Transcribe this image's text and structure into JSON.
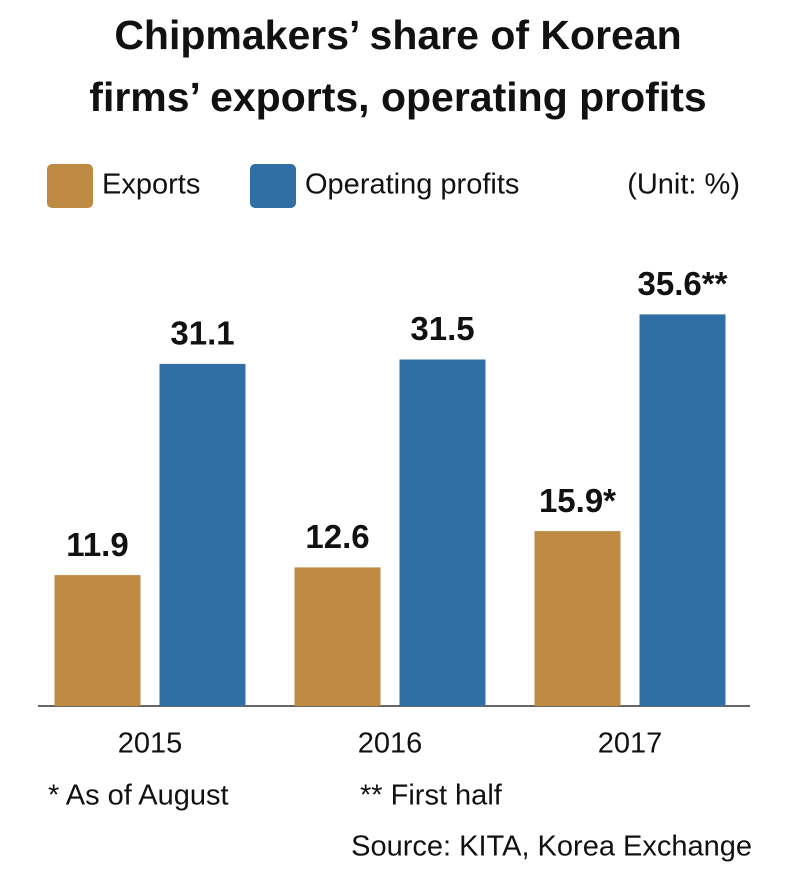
{
  "chart_data": {
    "type": "bar",
    "title": "Chipmakers’ share of Korean",
    "title_line2": "firms’ exports, operating profits",
    "unit": "(Unit: %)",
    "categories": [
      "2015",
      "2016",
      "2017"
    ],
    "series": [
      {
        "name": "Exports",
        "color": "#bf8a43",
        "values": [
          11.9,
          12.6,
          15.9
        ],
        "value_labels": [
          "11.9",
          "12.6",
          "15.9*"
        ]
      },
      {
        "name": "Operating profits",
        "color": "#2f6fa3",
        "values": [
          31.1,
          31.5,
          35.6
        ],
        "value_labels": [
          "31.1",
          "31.5",
          "35.6**"
        ]
      }
    ],
    "ylim": [
      0,
      40
    ],
    "notes": [
      "* As of August",
      "** First half"
    ],
    "source": "Source: KITA, Korea Exchange"
  }
}
